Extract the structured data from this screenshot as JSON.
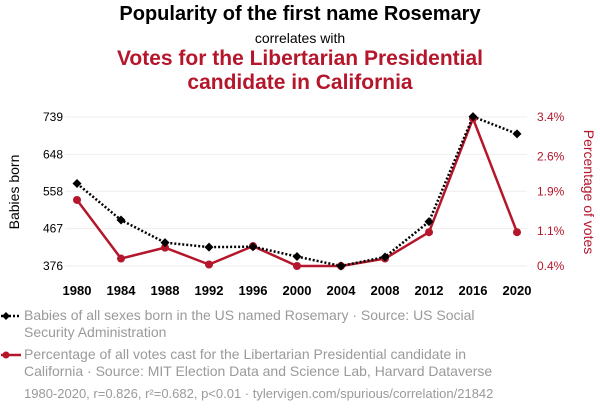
{
  "header": {
    "title": "Popularity of the first name Rosemary",
    "subtitle": "correlates with",
    "title2_line1": "Votes for the Libertarian Presidential",
    "title2_line2": "candidate in California"
  },
  "colors": {
    "series1": "#000000",
    "series2": "#b5162b",
    "muted": "#9a9a9a"
  },
  "chart_data": {
    "type": "line",
    "x": [
      1980,
      1984,
      1988,
      1992,
      1996,
      2000,
      2004,
      2008,
      2012,
      2016,
      2020
    ],
    "x_tick_labels": [
      "1980",
      "1984",
      "1988",
      "1992",
      "1996",
      "2000",
      "2004",
      "2008",
      "2012",
      "2016",
      "2020"
    ],
    "ylabel": "Babies born",
    "y2label": "Percentage of votes",
    "ylim": [
      376,
      739
    ],
    "y2lim": [
      0.4,
      3.4
    ],
    "y_ticks": [
      376,
      467,
      558,
      648,
      739
    ],
    "y_tick_labels": [
      "376",
      "467",
      "558",
      "648",
      "739"
    ],
    "y2_ticks": [
      0.4,
      1.1,
      1.9,
      2.6,
      3.4
    ],
    "y2_tick_labels": [
      "0.4%",
      "1.1%",
      "1.9%",
      "2.6%",
      "3.4%"
    ],
    "grid": true,
    "series": [
      {
        "name": "Babies of all sexes born in the US named Rosemary",
        "axis": "left",
        "style": "dotted",
        "marker": "diamond",
        "values": [
          577,
          488,
          433,
          422,
          423,
          399,
          376,
          398,
          484,
          740,
          698
        ]
      },
      {
        "name": "Percentage of all votes cast for the Libertarian Presidential candidate in California",
        "axis": "right",
        "style": "solid",
        "marker": "circle",
        "values": [
          1.73,
          0.55,
          0.77,
          0.43,
          0.8,
          0.4,
          0.4,
          0.55,
          1.08,
          3.37,
          1.08
        ]
      }
    ]
  },
  "legend": {
    "item1_line1": "Babies of all sexes born in the US named Rosemary · Source: US Social",
    "item1_line2": "Security Administration",
    "item2_line1": "Percentage of all votes cast for the Libertarian Presidential candidate in",
    "item2_line2": "California · Source: MIT Election Data and Science Lab, Harvard Dataverse"
  },
  "footer": "1980-2020, r=0.826, r²=0.682, p<0.01 · tylervigen.com/spurious/correlation/21842"
}
